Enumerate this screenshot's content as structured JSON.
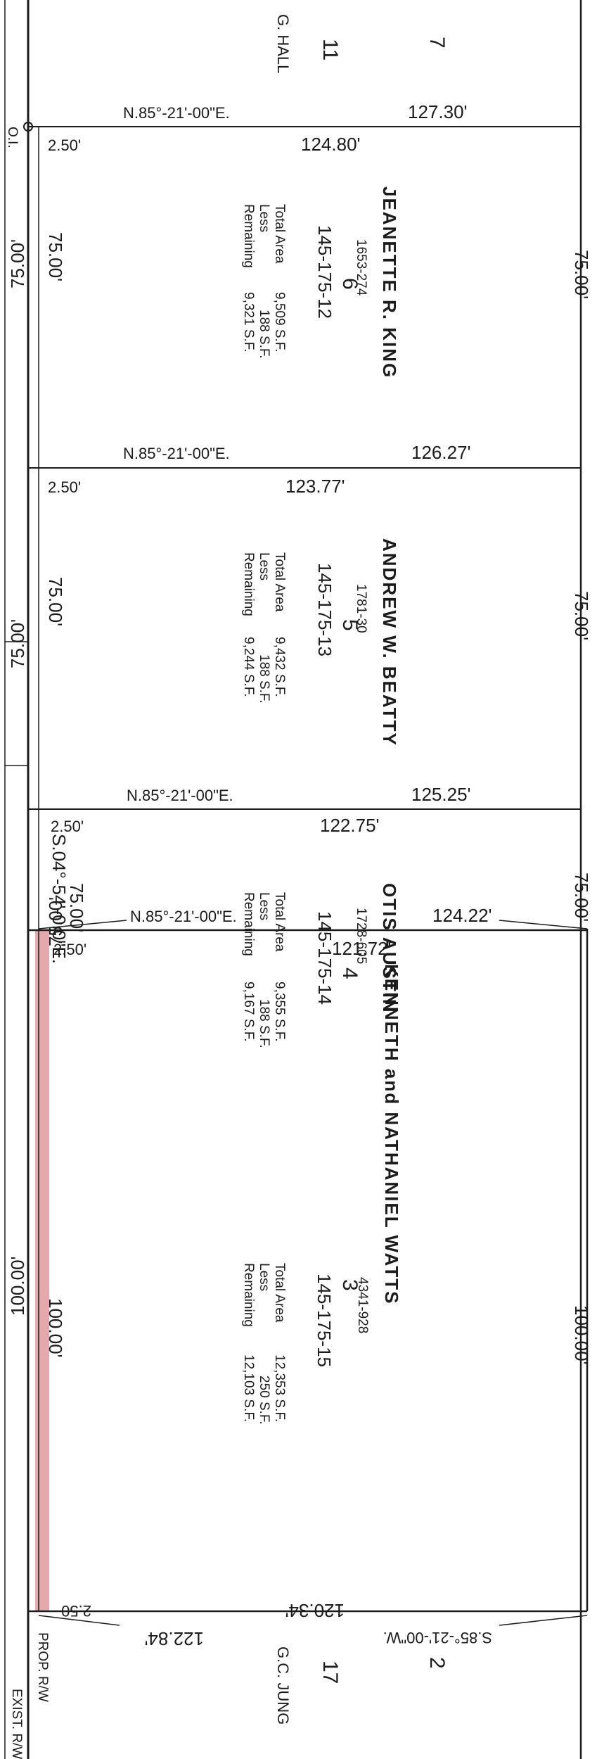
{
  "header": {
    "lot_7": "7",
    "lot_11": "11",
    "owner_11": "G. HALL",
    "top_bearing": "N.85°-21'-00\"E.",
    "top_dist": "127.30'"
  },
  "parcels": [
    {
      "lot": "6",
      "owner": "JEANETTE R. KING",
      "book": "1653-274",
      "parcel_id": "145-175-12",
      "total_label": "Total Area",
      "less_label": "Less",
      "remaining_label": "Remaining",
      "total": "9,509 S.F.",
      "less": "188 S.F.",
      "remaining": "9,321 S.F.",
      "east_dist": "75.00'",
      "west_dist": "75.00'",
      "row_offset": "2.50'",
      "inner_dist": "124.80'",
      "south_bearing": "N.85°-21'-00\"E.",
      "south_dist": "126.27'"
    },
    {
      "lot": "5",
      "owner": "ANDREW W. BEATTY",
      "book": "1781-30",
      "parcel_id": "145-175-13",
      "total_label": "Total Area",
      "less_label": "Less",
      "remaining_label": "Remaining",
      "total": "9,432 S.F.",
      "less": "188 S.F.",
      "remaining": "9,244 S.F.",
      "east_dist": "75.00'",
      "west_dist": "75.00'",
      "row_offset": "2.50'",
      "inner_dist": "123.77'",
      "south_bearing": "N.85°-21'-00\"E.",
      "south_dist": "125.25'"
    },
    {
      "lot": "4",
      "owner": "OTIS AUSTIN",
      "book": "1728-605",
      "parcel_id": "145-175-14",
      "total_label": "Total Area",
      "less_label": "Less",
      "remaining_label": "Remaining",
      "total": "9,355 S.F.",
      "less": "188 S.F.",
      "remaining": "9,167 S.F.",
      "east_dist": "75.00'",
      "west_dist": "75.00'",
      "row_offset": "2.50'",
      "inner_dist": "122.75'",
      "south_bearing": "N.85°-21'-00\"E.",
      "south_dist": "124.22'"
    },
    {
      "lot": "3",
      "owner": "KENNETH and NATHANIEL WATTS",
      "book": "4341-928",
      "parcel_id": "145-175-15",
      "total_label": "Total Area",
      "less_label": "Less",
      "remaining_label": "Remaining",
      "total": "12,353 S.F.",
      "less": "250 S.F.",
      "remaining": "12,103 S.F.",
      "east_dist": "100.00'",
      "west_dist": "100.00'",
      "row_offset": "2.50'",
      "inner_dist": "121.72'",
      "south_bearing": "S.85°-21'-00\"W.",
      "south_dist": "122.84'"
    }
  ],
  "left_margin": {
    "oi_label": "O.I.",
    "dist_1": "75.00'",
    "dist_2": "75.00'",
    "bearing": "S.04°-54'-0.0\"E.",
    "dist_3": "75.00'",
    "dist_4": "100.00'",
    "dist_bottom": "2.50",
    "flipped_inner": "120.34'"
  },
  "footer": {
    "lot_2": "2",
    "lot_17": "17",
    "owner_17": "G.C. JUNG",
    "prop_rw": "PROP. R/W",
    "exist_rw": "EXIST. R/W"
  },
  "colors": {
    "taking_strip": "#e3a9ad",
    "ink": "#1b1b1b"
  }
}
